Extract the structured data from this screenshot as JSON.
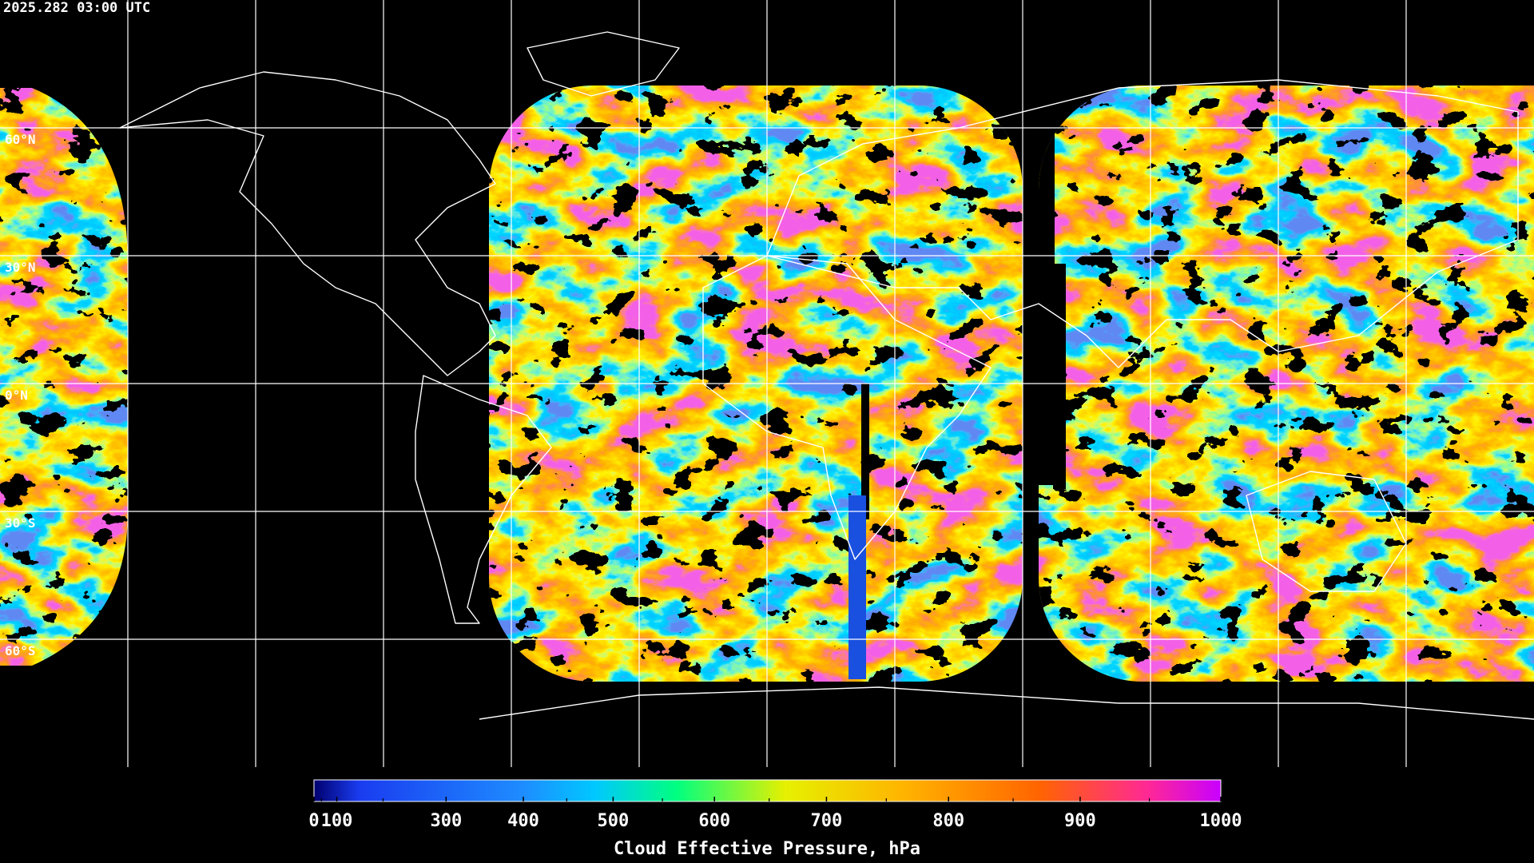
{
  "map": {
    "timestamp": "2025.282 03:00 UTC",
    "lat_labels": [
      "60°N",
      "30°N",
      "0°N",
      "30°S",
      "60°S"
    ],
    "colorbar": {
      "title": "Cloud Effective Pressure, hPa",
      "range": [
        0,
        1000
      ],
      "ticks": [
        0,
        100,
        300,
        400,
        500,
        600,
        700,
        800,
        900,
        1000
      ],
      "minor_ticks": [
        50,
        200,
        450,
        550,
        650,
        750,
        850,
        950
      ]
    }
  }
}
